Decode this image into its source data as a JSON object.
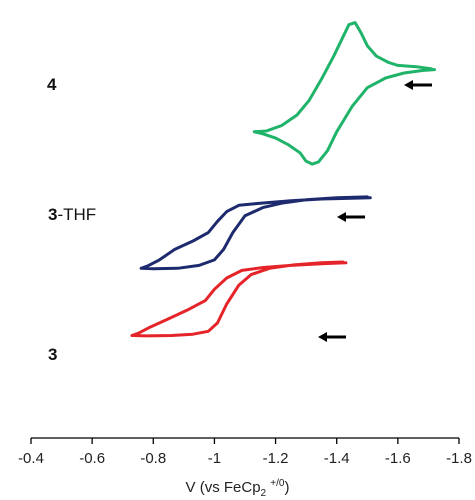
{
  "chart_data": {
    "type": "line",
    "title": "",
    "xlabel": {
      "main": "V (vs FeCp",
      "sub": "2",
      "sup": "+/0",
      "close": ")"
    },
    "ylabel": "",
    "x_reversed": true,
    "xlim": [
      -0.4,
      -1.8
    ],
    "xticks": [
      -0.4,
      -0.6,
      -0.8,
      -1,
      -1.2,
      -1.4,
      -1.6,
      -1.8
    ],
    "xtick_labels": [
      "-0.4",
      "-0.6",
      "-0.8",
      "-1",
      "-1.2",
      "-1.4",
      "-1.6",
      "-1.8"
    ],
    "grid": false,
    "series": [
      {
        "name": "4",
        "label_bold": "4",
        "label_rest": "",
        "color": "#20b36a",
        "scan_direction": "left-arrow",
        "trace": [
          [
            -1.71,
            0.86
          ],
          [
            -1.66,
            0.865
          ],
          [
            -1.6,
            0.868
          ],
          [
            -1.57,
            0.875
          ],
          [
            -1.53,
            0.89
          ],
          [
            -1.5,
            0.915
          ],
          [
            -1.48,
            0.945
          ],
          [
            -1.46,
            0.97
          ],
          [
            -1.44,
            0.965
          ],
          [
            -1.42,
            0.935
          ],
          [
            -1.39,
            0.89
          ],
          [
            -1.35,
            0.835
          ],
          [
            -1.31,
            0.785
          ],
          [
            -1.27,
            0.75
          ],
          [
            -1.22,
            0.725
          ],
          [
            -1.17,
            0.712
          ],
          [
            -1.13,
            0.71
          ],
          [
            -1.16,
            0.705
          ],
          [
            -1.2,
            0.695
          ],
          [
            -1.24,
            0.68
          ],
          [
            -1.28,
            0.66
          ],
          [
            -1.3,
            0.64
          ],
          [
            -1.32,
            0.633
          ],
          [
            -1.34,
            0.638
          ],
          [
            -1.37,
            0.665
          ],
          [
            -1.4,
            0.71
          ],
          [
            -1.45,
            0.77
          ],
          [
            -1.5,
            0.815
          ],
          [
            -1.56,
            0.838
          ],
          [
            -1.62,
            0.85
          ],
          [
            -1.68,
            0.856
          ],
          [
            -1.72,
            0.858
          ]
        ]
      },
      {
        "name": "3-THF",
        "label_bold": "3",
        "label_rest": "-THF",
        "color": "#1e2a6e",
        "scan_direction": "left-arrow",
        "trace": [
          [
            -1.5,
            0.555
          ],
          [
            -1.4,
            0.553
          ],
          [
            -1.3,
            0.548
          ],
          [
            -1.22,
            0.54
          ],
          [
            -1.16,
            0.53
          ],
          [
            -1.1,
            0.51
          ],
          [
            -1.06,
            0.47
          ],
          [
            -1.03,
            0.43
          ],
          [
            -1.0,
            0.405
          ],
          [
            -0.95,
            0.392
          ],
          [
            -0.88,
            0.385
          ],
          [
            -0.8,
            0.384
          ],
          [
            -0.76,
            0.385
          ],
          [
            -0.78,
            0.39
          ],
          [
            -0.82,
            0.405
          ],
          [
            -0.87,
            0.43
          ],
          [
            -0.93,
            0.45
          ],
          [
            -0.98,
            0.47
          ],
          [
            -1.01,
            0.497
          ],
          [
            -1.04,
            0.52
          ],
          [
            -1.08,
            0.535
          ],
          [
            -1.15,
            0.54
          ],
          [
            -1.25,
            0.546
          ],
          [
            -1.35,
            0.55
          ],
          [
            -1.45,
            0.552
          ],
          [
            -1.51,
            0.553
          ]
        ]
      },
      {
        "name": "3",
        "label_bold": "3",
        "label_rest": "",
        "color": "#e5242a",
        "scan_direction": "left-arrow",
        "trace": [
          [
            -1.42,
            0.4
          ],
          [
            -1.35,
            0.398
          ],
          [
            -1.26,
            0.393
          ],
          [
            -1.18,
            0.385
          ],
          [
            -1.12,
            0.37
          ],
          [
            -1.08,
            0.345
          ],
          [
            -1.04,
            0.3
          ],
          [
            -1.01,
            0.255
          ],
          [
            -0.98,
            0.235
          ],
          [
            -0.93,
            0.228
          ],
          [
            -0.86,
            0.225
          ],
          [
            -0.78,
            0.224
          ],
          [
            -0.73,
            0.225
          ],
          [
            -0.75,
            0.23
          ],
          [
            -0.79,
            0.245
          ],
          [
            -0.85,
            0.265
          ],
          [
            -0.91,
            0.285
          ],
          [
            -0.97,
            0.308
          ],
          [
            -1.0,
            0.335
          ],
          [
            -1.04,
            0.362
          ],
          [
            -1.09,
            0.38
          ],
          [
            -1.16,
            0.387
          ],
          [
            -1.25,
            0.392
          ],
          [
            -1.35,
            0.396
          ],
          [
            -1.43,
            0.398
          ]
        ]
      }
    ]
  }
}
